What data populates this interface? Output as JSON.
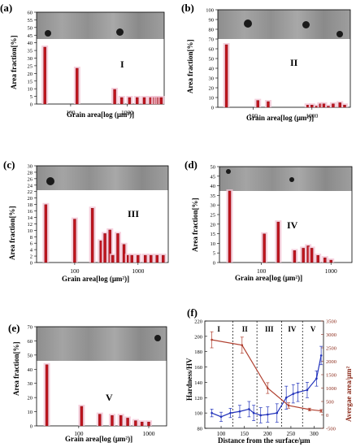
{
  "panels": [
    {
      "id": "a",
      "label": "(a)",
      "roman": "I",
      "ylabel": "Area fraction[%]",
      "xlabel": "Grain area[log (μm²)]",
      "yticks": [
        "0",
        "5",
        "10",
        "15",
        "20",
        "25",
        "30",
        "35",
        "40",
        "45",
        "50",
        "55",
        "60"
      ],
      "xticks": [
        "100",
        "1000"
      ]
    },
    {
      "id": "b",
      "label": "(b)",
      "roman": "II",
      "ylabel": "Area fraction[%]",
      "xlabel": "Grain area[log (μm²)]",
      "yticks": [
        "0",
        "10",
        "20",
        "30",
        "40",
        "50",
        "60",
        "70",
        "80",
        "90",
        "100"
      ],
      "xticks": [
        "100",
        "1000"
      ]
    },
    {
      "id": "c",
      "label": "(c)",
      "roman": "III",
      "ylabel": "Area fraction[%]",
      "xlabel": "Grain area[log (μm²)]",
      "yticks": [
        "0",
        "2",
        "4",
        "6",
        "8",
        "10",
        "12",
        "14",
        "16",
        "18",
        "20",
        "22",
        "24",
        "26",
        "28",
        "30"
      ],
      "xticks": [
        "100",
        "1000"
      ]
    },
    {
      "id": "d",
      "label": "(d)",
      "roman": "IV",
      "ylabel": "Area fraction[%]",
      "xlabel": "Grain area[log (μm²)]",
      "yticks": [
        "0",
        "5",
        "10",
        "15",
        "20",
        "25",
        "30",
        "35",
        "40",
        "45",
        "50"
      ],
      "xticks": [
        "100",
        "1000"
      ]
    },
    {
      "id": "e",
      "label": "(e)",
      "roman": "V",
      "ylabel": "Area fraction[%]",
      "xlabel": "Grain area[log (μm²)]",
      "yticks": [
        "0",
        "10",
        "20",
        "30",
        "40",
        "50",
        "60",
        "70"
      ],
      "xticks": [
        "100",
        "1000"
      ]
    },
    {
      "id": "f",
      "label": "(f)",
      "ylabel_left": "Hardness/HV",
      "ylabel_right": "Avergae area/μm²",
      "xlabel": "Distance from the surface/μm",
      "zones": [
        "I",
        "II",
        "III",
        "IV",
        "V"
      ]
    }
  ],
  "chart_data": [
    {
      "type": "bar",
      "title": "",
      "xlabel": "Grain area[log (μm²)]",
      "ylabel": "Area fraction[%]",
      "xscale": "log",
      "ylim": [
        0,
        60
      ],
      "shown_ymax": 40,
      "x": [
        35,
        130,
        600,
        800,
        1100,
        1500,
        2000,
        2600,
        3000,
        3300,
        3600,
        4000
      ],
      "values": [
        35,
        22,
        9,
        4,
        4,
        4,
        4,
        4,
        4,
        4,
        4,
        4
      ]
    },
    {
      "type": "bar",
      "title": "",
      "xlabel": "Grain area[log (μm²)]",
      "ylabel": "Area fraction[%]",
      "xscale": "log",
      "ylim": [
        0,
        100
      ],
      "shown_ymax": 60,
      "x": [
        35,
        120,
        180,
        850,
        1000,
        1200,
        1400,
        1600,
        1900,
        2300,
        3000,
        3600
      ],
      "values": [
        55,
        6,
        5,
        2,
        2,
        1,
        3,
        3,
        1,
        3,
        4,
        2
      ]
    },
    {
      "type": "bar",
      "title": "",
      "xlabel": "Grain area[log (μm²)]",
      "ylabel": "Area fraction[%]",
      "xscale": "log",
      "ylim": [
        0,
        30
      ],
      "shown_ymax": 20,
      "x": [
        35,
        100,
        190,
        260,
        300,
        360,
        400,
        480,
        600,
        700,
        800,
        1000,
        1300,
        1600,
        2000,
        2500
      ],
      "values": [
        16,
        12,
        15,
        6,
        8,
        9,
        2,
        8,
        5,
        2,
        2,
        2,
        2,
        2,
        2,
        2
      ]
    },
    {
      "type": "bar",
      "title": "",
      "xlabel": "Grain area[log (μm²)]",
      "ylabel": "Area fraction[%]",
      "xscale": "log",
      "ylim": [
        0,
        50
      ],
      "shown_ymax": 30,
      "x": [
        35,
        110,
        175,
        300,
        400,
        470,
        530,
        650,
        820,
        1000
      ],
      "values": [
        32,
        12,
        17,
        5,
        6,
        7,
        6,
        3,
        2,
        1
      ]
    },
    {
      "type": "bar",
      "title": "",
      "xlabel": "Grain area[log (μm²)]",
      "ylabel": "Area fraction[%]",
      "xscale": "log",
      "ylim": [
        0,
        70
      ],
      "shown_ymax": 50,
      "x": [
        35,
        110,
        200,
        300,
        400,
        500,
        650,
        800,
        1000
      ],
      "values": [
        47,
        15,
        9,
        8,
        8,
        6,
        4,
        3,
        3
      ]
    },
    {
      "type": "line",
      "title": "",
      "xlabel": "Distance from the surface/μm",
      "ylabel": "Hardness/HV",
      "y2label": "Avergae area/μm²",
      "xlim": [
        65,
        320
      ],
      "ylim": [
        80,
        220
      ],
      "y2lim": [
        -500,
        3500
      ],
      "xticks": [
        100,
        150,
        200,
        250,
        300
      ],
      "yticks": [
        80,
        100,
        120,
        140,
        160,
        180,
        200,
        220
      ],
      "y2ticks": [
        -500,
        0,
        500,
        1000,
        1500,
        2000,
        2500,
        3000,
        3500
      ],
      "zone_boundaries": [
        125,
        177,
        230,
        275
      ],
      "series": [
        {
          "color": "#2233bb",
          "axis": "left",
          "x": [
            80,
            100,
            120,
            140,
            160,
            170,
            185,
            200,
            220,
            240,
            255,
            265,
            285,
            305,
            315
          ],
          "y": [
            100,
            95,
            100,
            102,
            105,
            100,
            97,
            98,
            100,
            120,
            125,
            127,
            130,
            145,
            175
          ],
          "err": [
            5,
            6,
            6,
            8,
            10,
            10,
            10,
            10,
            12,
            15,
            12,
            12,
            10,
            10,
            12
          ]
        },
        {
          "color": "#b04030",
          "axis": "right",
          "x": [
            80,
            145,
            200,
            245,
            290,
            315
          ],
          "y": [
            2800,
            2600,
            1000,
            350,
            200,
            150
          ],
          "err": [
            300,
            300,
            200,
            100,
            50,
            50
          ]
        }
      ]
    }
  ]
}
